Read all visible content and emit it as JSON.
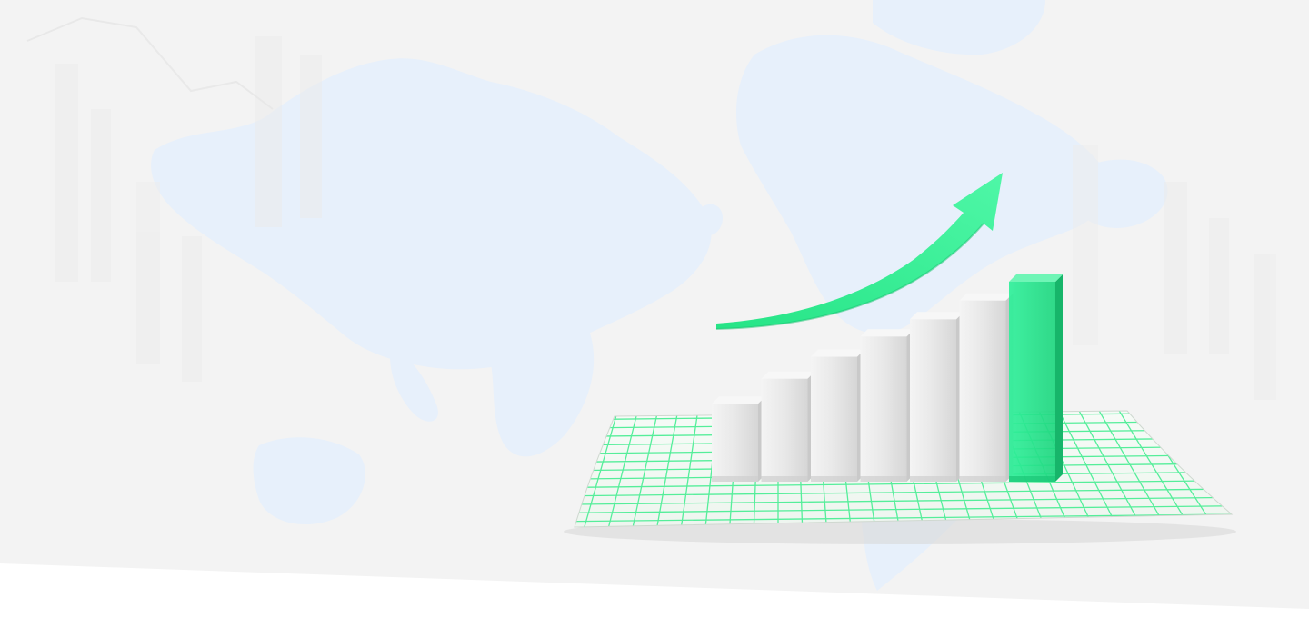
{
  "colors": {
    "background": "#ffffff",
    "band": "#f3f3f3",
    "map": "#e7f0fb",
    "accent": "#2fe88f",
    "accent_grid": "#55ee9a",
    "bar_white": "#e9e9e9"
  },
  "illustration": {
    "subject": "3d-bar-chart-with-rising-arrow",
    "bars": [
      {
        "level": 0.22,
        "highlight": false
      },
      {
        "level": 0.38,
        "highlight": false
      },
      {
        "level": 0.52,
        "highlight": false
      },
      {
        "level": 0.65,
        "highlight": false
      },
      {
        "level": 0.76,
        "highlight": false
      },
      {
        "level": 0.88,
        "highlight": false
      },
      {
        "level": 1.0,
        "highlight": true
      }
    ]
  }
}
